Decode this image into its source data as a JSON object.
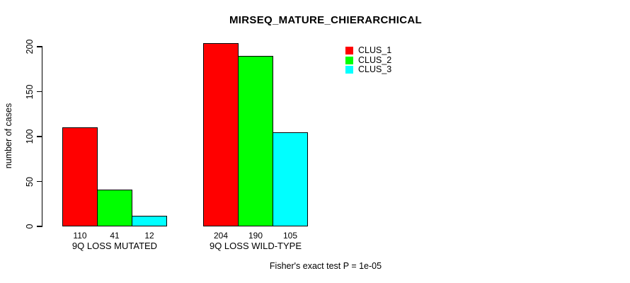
{
  "chart_data": {
    "type": "bar",
    "title": "MIRSEQ_MATURE_CHIERARCHICAL",
    "ylabel": "number of cases",
    "xlabel": "",
    "categories": [
      "9Q LOSS MUTATED",
      "9Q LOSS WILD-TYPE"
    ],
    "series": [
      {
        "name": "CLUS_1",
        "color": "#ff0000",
        "values": [
          110,
          204
        ]
      },
      {
        "name": "CLUS_2",
        "color": "#00ff00",
        "values": [
          41,
          190
        ]
      },
      {
        "name": "CLUS_3",
        "color": "#00ffff",
        "values": [
          12,
          105
        ]
      }
    ],
    "show_bar_values": true,
    "yticks": [
      0,
      50,
      100,
      150,
      200
    ],
    "ylim": [
      0,
      204
    ],
    "grid": false,
    "legend_position": "upper-right-of-plot",
    "annotation": "Fisher's exact test P = 1e-05"
  },
  "colors": {
    "background": "#ffffff",
    "text": "#000000",
    "bar_border": "#000000"
  }
}
